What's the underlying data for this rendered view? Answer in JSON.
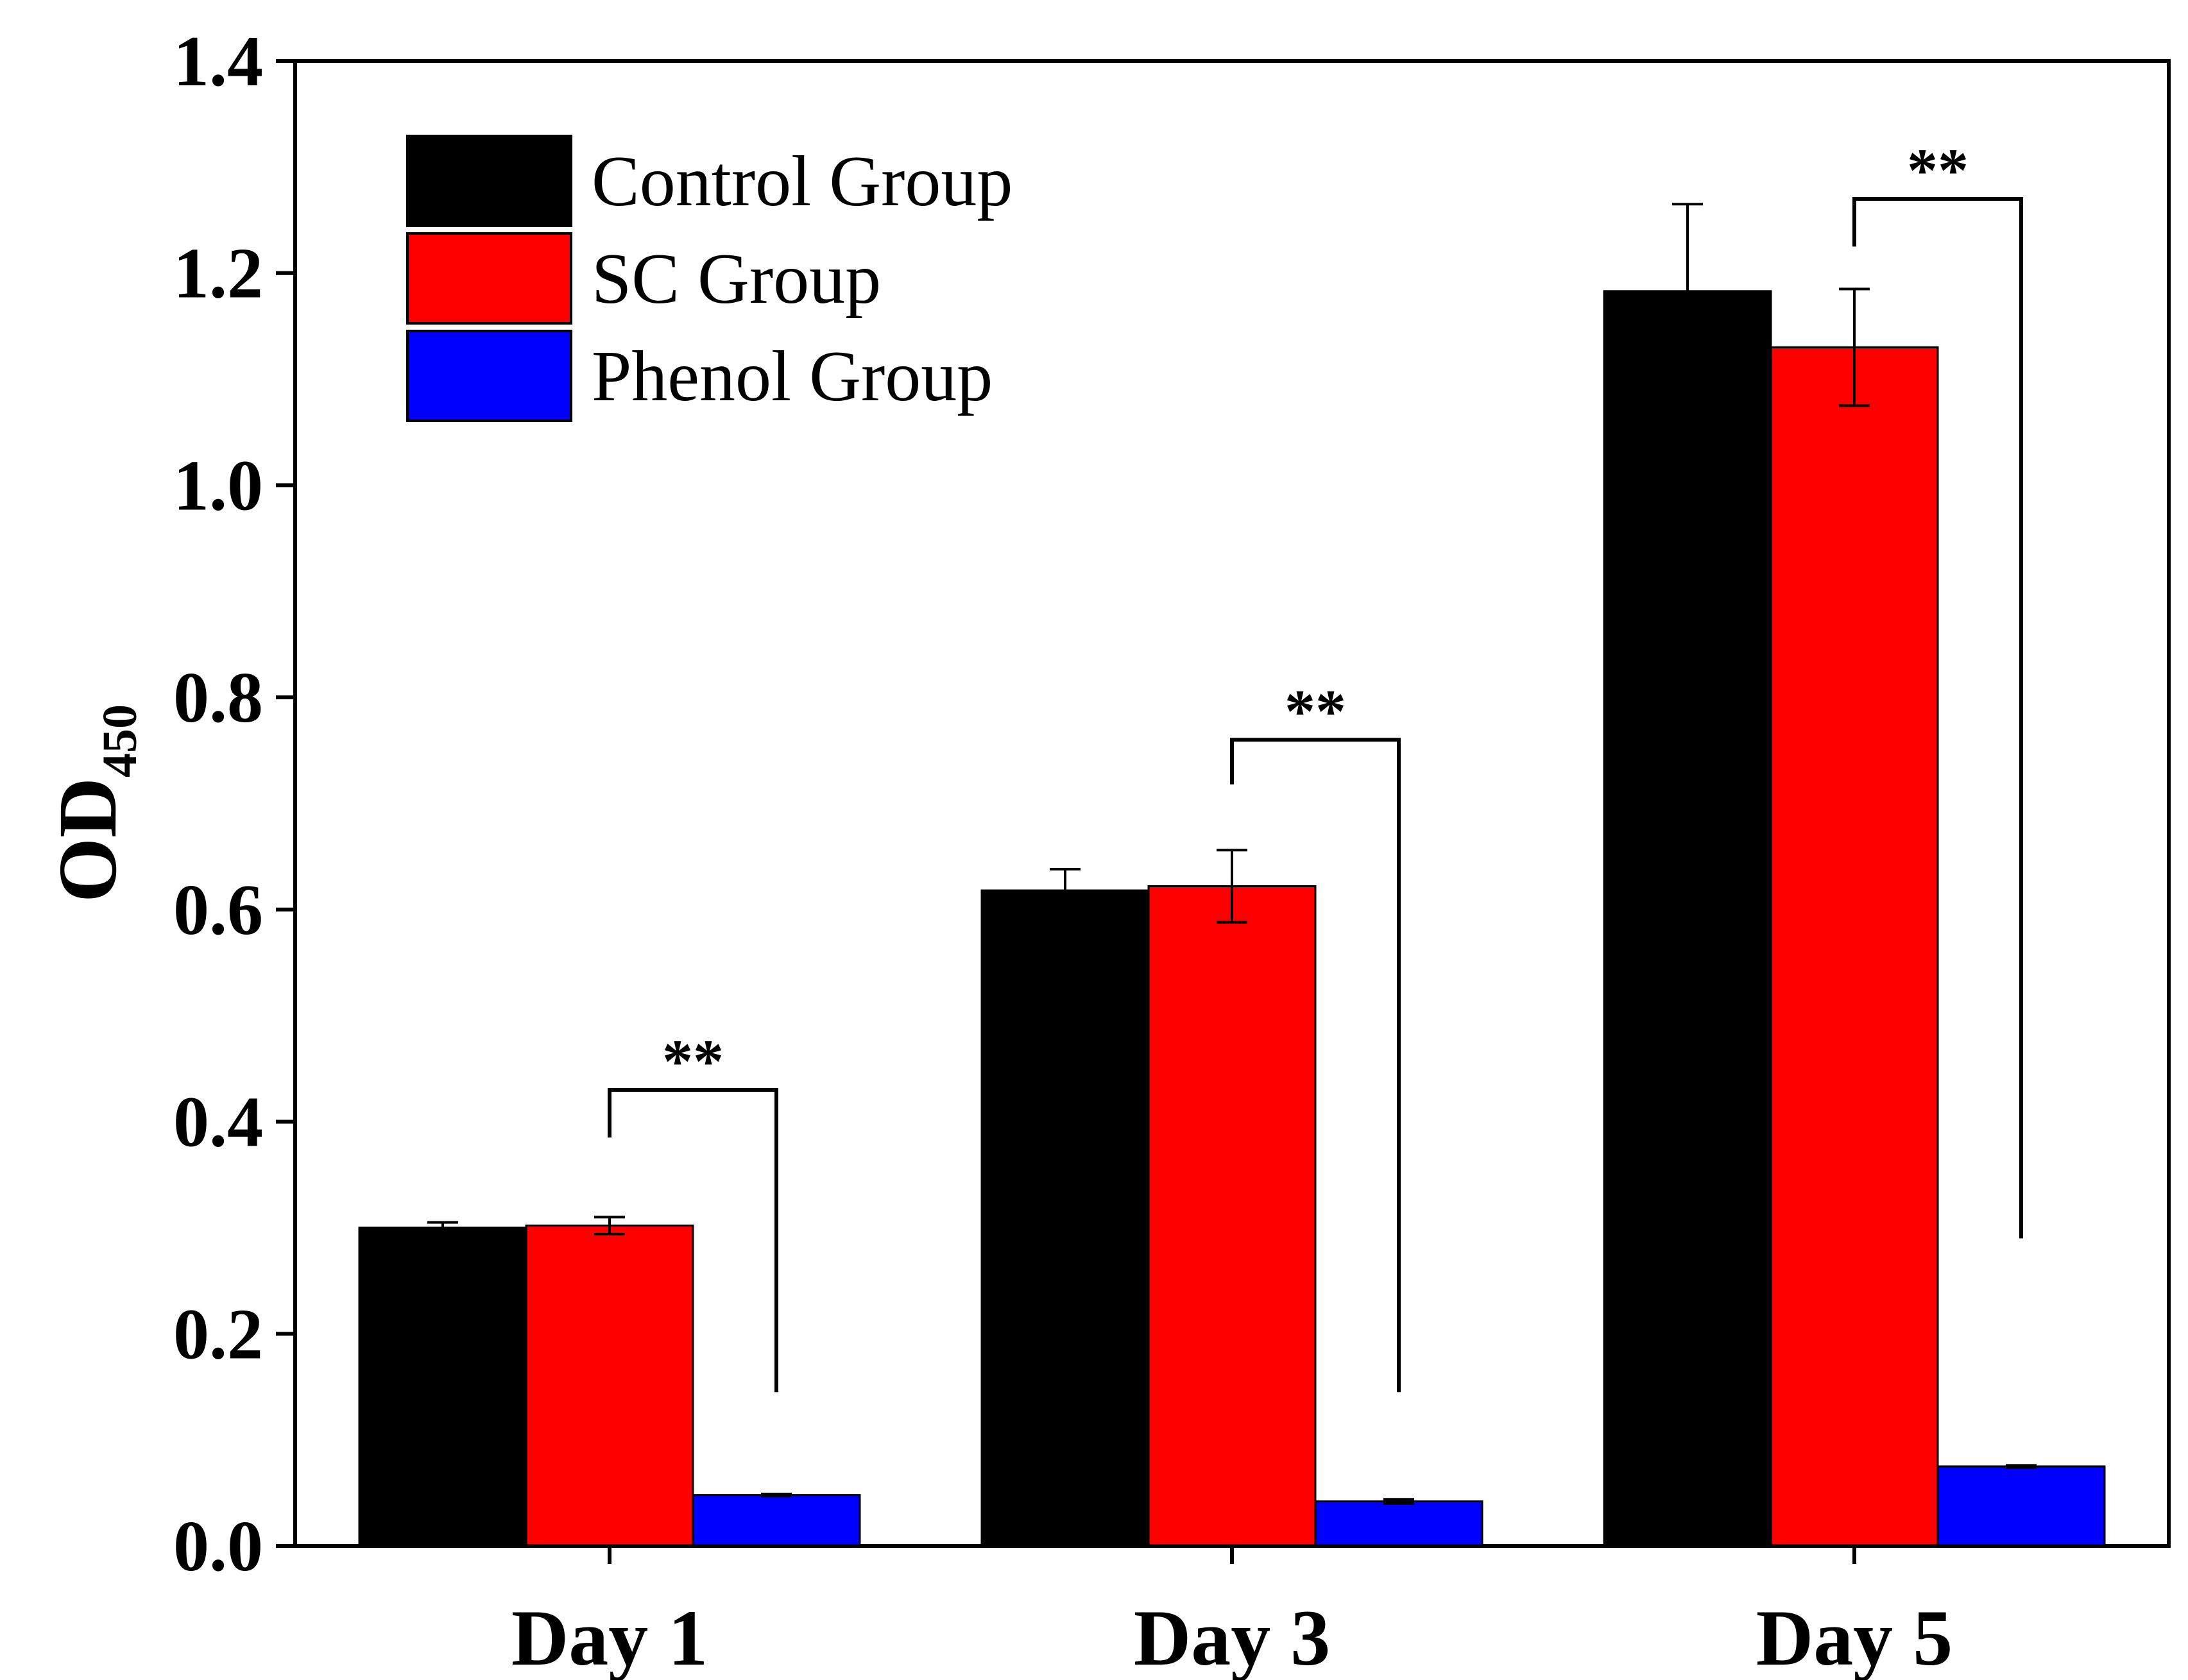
{
  "chart_data": {
    "type": "bar",
    "ylabel": "OD",
    "ylabel_subscript": "450",
    "categories": [
      "Day 1",
      "Day 3",
      "Day 5"
    ],
    "ylim": [
      0.0,
      1.4
    ],
    "yticks": [
      "0.0",
      "0.2",
      "0.4",
      "0.6",
      "0.8",
      "1.0",
      "1.2",
      "1.4"
    ],
    "legend_position": "top-left",
    "grid": false,
    "series": [
      {
        "name": "Control Group",
        "color": "#000000",
        "values": [
          0.3,
          0.618,
          1.183
        ],
        "errors": [
          0.005,
          0.02,
          0.082
        ]
      },
      {
        "name": "SC Group",
        "color": "#ff0000",
        "values": [
          0.302,
          0.622,
          1.13
        ],
        "errors": [
          0.008,
          0.034,
          0.055
        ]
      },
      {
        "name": "Phenol Group",
        "color": "#0000ff",
        "values": [
          0.048,
          0.042,
          0.075
        ],
        "errors": [
          0.001,
          0.002,
          0.001
        ]
      }
    ],
    "annotations": [
      {
        "text": "**",
        "category": "Day 1",
        "from_series": "SC Group",
        "to_series": "Phenol Group",
        "bracket_y": 0.43,
        "left_drop_to": 0.385,
        "right_drop_to": 0.145
      },
      {
        "text": "**",
        "category": "Day 3",
        "from_series": "SC Group",
        "to_series": "Phenol Group",
        "bracket_y": 0.76,
        "left_drop_to": 0.718,
        "right_drop_to": 0.145
      },
      {
        "text": "**",
        "category": "Day 5",
        "from_series": "SC Group",
        "to_series": "Phenol Group",
        "bracket_y": 1.27,
        "left_drop_to": 1.225,
        "right_drop_to": 0.29
      }
    ]
  }
}
